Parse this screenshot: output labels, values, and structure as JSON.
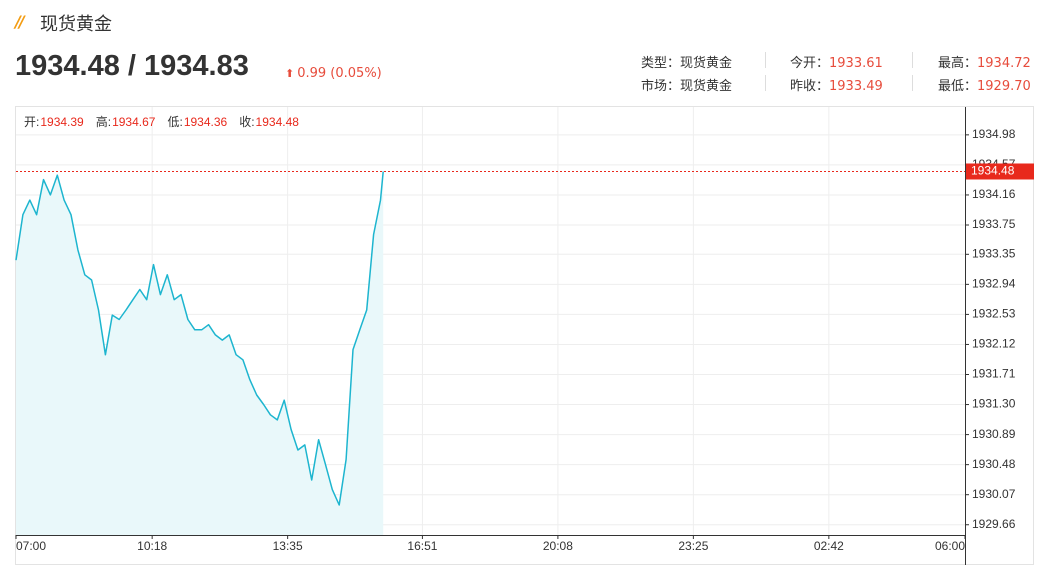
{
  "header": {
    "title": "现货黄金",
    "price": "1934.48 / 1934.83",
    "change": "0.99 (0.05%)"
  },
  "stats": [
    {
      "label": "类型：",
      "value": "现货黄金"
    },
    {
      "label": "今开：",
      "value": "1933.61"
    },
    {
      "label": "最高：",
      "value": "1934.72"
    },
    {
      "label": "市场：",
      "value": "现货黄金"
    },
    {
      "label": "昨收：",
      "value": "1933.49"
    },
    {
      "label": "最低：",
      "value": "1929.70"
    }
  ],
  "chart_data": {
    "type": "line",
    "legend": [
      {
        "label": "开:",
        "value": 1934.39
      },
      {
        "label": "高:",
        "value": 1934.67
      },
      {
        "label": "低:",
        "value": 1934.36
      },
      {
        "label": "收:",
        "value": 1934.48
      }
    ],
    "x": [
      "07:00",
      "07:10",
      "07:20",
      "07:30",
      "07:40",
      "07:50",
      "08:00",
      "08:10",
      "08:20",
      "08:30",
      "08:40",
      "08:50",
      "09:00",
      "09:10",
      "09:20",
      "09:30",
      "09:40",
      "09:50",
      "10:00",
      "10:10",
      "10:20",
      "10:30",
      "10:40",
      "10:50",
      "11:00",
      "11:10",
      "11:20",
      "11:30",
      "11:40",
      "11:50",
      "12:00",
      "12:10",
      "12:20",
      "12:30",
      "12:40",
      "12:50",
      "13:00",
      "13:10",
      "13:20",
      "13:30",
      "13:40",
      "13:50",
      "14:00",
      "14:10",
      "14:20",
      "14:30",
      "14:40",
      "14:50",
      "15:00",
      "15:10",
      "15:20",
      "15:30",
      "15:40",
      "15:50",
      "15:54"
    ],
    "values": [
      1933.27,
      1933.89,
      1934.09,
      1933.89,
      1934.37,
      1934.16,
      1934.43,
      1934.09,
      1933.89,
      1933.41,
      1933.07,
      1933.0,
      1932.59,
      1931.98,
      1932.52,
      1932.46,
      1932.59,
      1932.73,
      1932.87,
      1932.73,
      1933.21,
      1932.8,
      1933.07,
      1932.73,
      1932.8,
      1932.46,
      1932.32,
      1932.32,
      1932.39,
      1932.25,
      1932.18,
      1932.25,
      1931.98,
      1931.91,
      1931.64,
      1931.43,
      1931.3,
      1931.16,
      1931.09,
      1931.36,
      1930.96,
      1930.68,
      1930.75,
      1930.27,
      1930.82,
      1930.48,
      1930.14,
      1929.93,
      1930.55,
      1932.05,
      1932.32,
      1932.59,
      1933.62,
      1934.09,
      1934.48
    ],
    "color": "#1db5cf",
    "fill_color": "#e9f8fa",
    "last_color": "#e8291c",
    "xlim": [
      "07:00",
      "06:00"
    ],
    "xticks": [
      "07:00",
      "10:18",
      "13:35",
      "16:51",
      "20:08",
      "23:25",
      "02:42",
      "06:00"
    ],
    "ylim": [
      1929.52,
      1935.36
    ],
    "yticks": [
      1929.66,
      1930.07,
      1930.48,
      1930.89,
      {
        "value": 1931.3,
        "label": "1931.30"
      },
      1931.71,
      1932.12,
      1932.53,
      1932.94,
      1933.35,
      1933.75,
      1934.16,
      1934.57,
      1934.98
    ],
    "grid": true
  }
}
